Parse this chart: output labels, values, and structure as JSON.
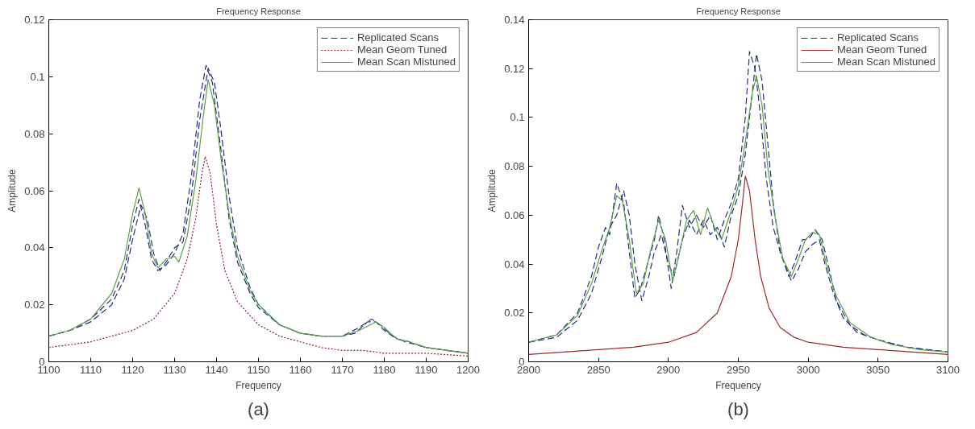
{
  "chart_data": [
    {
      "type": "line",
      "title": "Frequency Response",
      "xlabel": "Frequency",
      "ylabel": "Amplitude",
      "annotations": [
        "(a)"
      ],
      "xlim": [
        1100,
        1200
      ],
      "xticks": [
        1100,
        1110,
        1120,
        1130,
        1140,
        1150,
        1160,
        1170,
        1180,
        1190,
        1200
      ],
      "ylim": [
        0,
        0.12
      ],
      "yticks": [
        0,
        0.02,
        0.04,
        0.06,
        0.08,
        0.1,
        0.12
      ],
      "grid": false,
      "legend": "top right",
      "series": [
        {
          "name": "Replicated Scans",
          "color": "#27307a",
          "line_style": "dashed",
          "x": [
            1100,
            1105,
            1110,
            1115,
            1118,
            1120,
            1121.5,
            1123,
            1124.5,
            1126,
            1128,
            1130,
            1132,
            1134,
            1136,
            1137.5,
            1139,
            1141,
            1143,
            1145,
            1148,
            1150,
            1155,
            1160,
            1165,
            1170,
            1174,
            1177,
            1179,
            1182,
            1185,
            1190,
            1195,
            1200
          ],
          "values": [
            0.009,
            0.011,
            0.015,
            0.022,
            0.032,
            0.048,
            0.057,
            0.048,
            0.036,
            0.032,
            0.034,
            0.038,
            0.045,
            0.065,
            0.092,
            0.104,
            0.098,
            0.075,
            0.05,
            0.035,
            0.024,
            0.019,
            0.013,
            0.01,
            0.009,
            0.009,
            0.012,
            0.015,
            0.013,
            0.009,
            0.007,
            0.005,
            0.004,
            0.003
          ]
        },
        {
          "color": "#27307a",
          "line_style": "dashed",
          "x": [
            1100,
            1105,
            1110,
            1115,
            1118,
            1120,
            1122,
            1123.5,
            1125,
            1126.5,
            1128,
            1130,
            1132,
            1134,
            1136,
            1138,
            1139.5,
            1141,
            1143,
            1145,
            1148,
            1150,
            1155,
            1160,
            1165,
            1170,
            1173,
            1176,
            1178,
            1180,
            1183,
            1186,
            1190,
            1195,
            1200
          ],
          "values": [
            0.009,
            0.011,
            0.014,
            0.02,
            0.029,
            0.043,
            0.055,
            0.05,
            0.038,
            0.032,
            0.035,
            0.04,
            0.042,
            0.058,
            0.085,
            0.103,
            0.098,
            0.082,
            0.058,
            0.04,
            0.026,
            0.02,
            0.013,
            0.01,
            0.009,
            0.009,
            0.01,
            0.014,
            0.014,
            0.011,
            0.008,
            0.007,
            0.005,
            0.004,
            0.003
          ]
        },
        {
          "name": "Mean Geom Tuned",
          "color": "#8b2020",
          "line_style": "dotted",
          "x": [
            1100,
            1105,
            1110,
            1115,
            1120,
            1125,
            1130,
            1133,
            1135,
            1136.5,
            1137.3,
            1138.5,
            1140,
            1142,
            1145,
            1150,
            1155,
            1160,
            1165,
            1170,
            1175,
            1180,
            1190,
            1200
          ],
          "values": [
            0.005,
            0.006,
            0.007,
            0.009,
            0.011,
            0.015,
            0.024,
            0.036,
            0.05,
            0.066,
            0.072,
            0.066,
            0.048,
            0.032,
            0.021,
            0.013,
            0.009,
            0.007,
            0.005,
            0.004,
            0.004,
            0.003,
            0.003,
            0.002
          ]
        },
        {
          "name": "Mean Scan Mistuned",
          "color": "#5aa04a",
          "line_style": "solid",
          "x": [
            1100,
            1105,
            1110,
            1115,
            1118,
            1120,
            1121.5,
            1123,
            1124.5,
            1126,
            1128,
            1130,
            1131,
            1133,
            1135,
            1137,
            1138,
            1139.5,
            1141,
            1143,
            1145,
            1148,
            1150,
            1155,
            1160,
            1165,
            1170,
            1174,
            1178,
            1180,
            1183,
            1186,
            1190,
            1195,
            1200
          ],
          "values": [
            0.009,
            0.011,
            0.015,
            0.024,
            0.036,
            0.052,
            0.061,
            0.052,
            0.038,
            0.033,
            0.036,
            0.037,
            0.035,
            0.044,
            0.063,
            0.088,
            0.099,
            0.09,
            0.072,
            0.052,
            0.037,
            0.025,
            0.02,
            0.013,
            0.01,
            0.009,
            0.009,
            0.011,
            0.014,
            0.012,
            0.008,
            0.007,
            0.005,
            0.004,
            0.003
          ]
        }
      ]
    },
    {
      "type": "line",
      "title": "Frequency Response",
      "xlabel": "Frequency",
      "ylabel": "Amplitude",
      "annotations": [
        "(b)"
      ],
      "xlim": [
        2800,
        3100
      ],
      "xticks": [
        2800,
        2850,
        2900,
        2950,
        3000,
        3050,
        3100
      ],
      "ylim": [
        0,
        0.14
      ],
      "yticks": [
        0,
        0.02,
        0.04,
        0.06,
        0.08,
        0.1,
        0.12,
        0.14
      ],
      "grid": false,
      "legend": "top right",
      "series": [
        {
          "name": "Replicated Scans",
          "color": "#27307a",
          "line_style": "dashed",
          "x": [
            2800,
            2820,
            2835,
            2845,
            2850,
            2855,
            2858,
            2863,
            2868,
            2872,
            2876,
            2880,
            2885,
            2890,
            2893,
            2897,
            2902,
            2906,
            2910,
            2915,
            2920,
            2925,
            2930,
            2935,
            2940,
            2945,
            2950,
            2955,
            2958,
            2962,
            2966,
            2970,
            2975,
            2980,
            2986,
            2990,
            2996,
            3000,
            3005,
            3010,
            3015,
            3020,
            3030,
            3040,
            3050,
            3070,
            3085,
            3100
          ],
          "values": [
            0.008,
            0.011,
            0.02,
            0.035,
            0.047,
            0.055,
            0.052,
            0.073,
            0.065,
            0.045,
            0.026,
            0.03,
            0.04,
            0.05,
            0.06,
            0.05,
            0.03,
            0.045,
            0.064,
            0.055,
            0.06,
            0.055,
            0.06,
            0.05,
            0.058,
            0.065,
            0.075,
            0.1,
            0.127,
            0.12,
            0.1,
            0.075,
            0.055,
            0.045,
            0.035,
            0.04,
            0.05,
            0.05,
            0.054,
            0.05,
            0.038,
            0.025,
            0.015,
            0.011,
            0.009,
            0.006,
            0.005,
            0.004
          ]
        },
        {
          "color": "#27307a",
          "line_style": "dashed",
          "x": [
            2800,
            2820,
            2835,
            2845,
            2852,
            2858,
            2863,
            2868,
            2872,
            2876,
            2881,
            2886,
            2890,
            2895,
            2900,
            2904,
            2910,
            2915,
            2920,
            2925,
            2930,
            2935,
            2940,
            2945,
            2950,
            2955,
            2960,
            2963,
            2967,
            2971,
            2975,
            2980,
            2988,
            2993,
            2998,
            3003,
            3008,
            3012,
            3018,
            3025,
            3035,
            3050,
            3070,
            3085,
            3100
          ],
          "values": [
            0.008,
            0.01,
            0.017,
            0.028,
            0.042,
            0.055,
            0.06,
            0.07,
            0.06,
            0.04,
            0.025,
            0.035,
            0.045,
            0.052,
            0.04,
            0.035,
            0.05,
            0.058,
            0.052,
            0.058,
            0.052,
            0.055,
            0.047,
            0.06,
            0.068,
            0.085,
            0.11,
            0.126,
            0.115,
            0.09,
            0.065,
            0.045,
            0.033,
            0.038,
            0.045,
            0.048,
            0.05,
            0.04,
            0.028,
            0.018,
            0.012,
            0.009,
            0.006,
            0.005,
            0.004
          ]
        },
        {
          "name": "Mean Geom Tuned",
          "color": "#9b2a2a",
          "line_style": "solid",
          "x": [
            2800,
            2825,
            2850,
            2875,
            2900,
            2920,
            2935,
            2945,
            2950,
            2953,
            2955,
            2958,
            2962,
            2966,
            2972,
            2980,
            2990,
            3000,
            3025,
            3050,
            3075,
            3100
          ],
          "values": [
            0.003,
            0.004,
            0.005,
            0.006,
            0.008,
            0.012,
            0.02,
            0.035,
            0.05,
            0.065,
            0.076,
            0.07,
            0.05,
            0.035,
            0.022,
            0.014,
            0.01,
            0.008,
            0.006,
            0.005,
            0.004,
            0.003
          ]
        },
        {
          "name": "Mean Scan Mistuned",
          "color": "#5aa04a",
          "line_style": "solid",
          "x": [
            2800,
            2820,
            2835,
            2845,
            2852,
            2858,
            2863,
            2867,
            2872,
            2877,
            2882,
            2887,
            2893,
            2898,
            2903,
            2908,
            2913,
            2918,
            2923,
            2928,
            2933,
            2938,
            2945,
            2950,
            2955,
            2960,
            2963,
            2967,
            2971,
            2976,
            2982,
            2988,
            2993,
            2998,
            3003,
            3008,
            3013,
            3020,
            3030,
            3045,
            3060,
            3080,
            3100
          ],
          "values": [
            0.008,
            0.011,
            0.019,
            0.032,
            0.045,
            0.055,
            0.068,
            0.066,
            0.05,
            0.028,
            0.032,
            0.045,
            0.058,
            0.05,
            0.033,
            0.045,
            0.058,
            0.062,
            0.052,
            0.063,
            0.055,
            0.05,
            0.062,
            0.072,
            0.09,
            0.11,
            0.117,
            0.105,
            0.08,
            0.06,
            0.042,
            0.035,
            0.042,
            0.05,
            0.053,
            0.052,
            0.04,
            0.027,
            0.016,
            0.01,
            0.007,
            0.005,
            0.004
          ]
        }
      ]
    }
  ]
}
